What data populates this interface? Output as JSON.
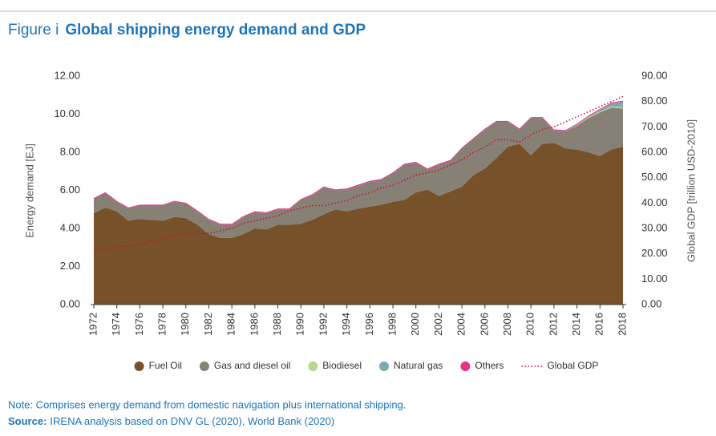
{
  "chart_data": {
    "type": "stacked-area",
    "figure_label": "Figure i",
    "title": "Global shipping energy demand and GDP",
    "y_label": "Energy demand [EJ]",
    "y2_label": "Global GDP [trillion USD-2010]",
    "x": [
      1972,
      1973,
      1974,
      1975,
      1976,
      1977,
      1978,
      1979,
      1980,
      1981,
      1982,
      1983,
      1984,
      1985,
      1986,
      1987,
      1988,
      1989,
      1990,
      1991,
      1992,
      1993,
      1994,
      1995,
      1996,
      1997,
      1998,
      1999,
      2000,
      2001,
      2002,
      2003,
      2004,
      2005,
      2006,
      2007,
      2008,
      2009,
      2010,
      2011,
      2012,
      2013,
      2014,
      2015,
      2016,
      2017,
      2018
    ],
    "xlim": [
      1972,
      2018
    ],
    "xticks": [
      1972,
      1974,
      1976,
      1978,
      1980,
      1982,
      1984,
      1986,
      1988,
      1990,
      1992,
      1994,
      1996,
      1998,
      2000,
      2002,
      2004,
      2006,
      2008,
      2010,
      2012,
      2014,
      2016,
      2018
    ],
    "ylim": [
      0,
      12
    ],
    "yticks": [
      {
        "value": 0,
        "label": "0.00"
      },
      {
        "value": 2,
        "label": "2.00"
      },
      {
        "value": 4,
        "label": "4.00"
      },
      {
        "value": 6,
        "label": "6.00"
      },
      {
        "value": 8,
        "label": "8.00"
      },
      {
        "value": 10,
        "label": "10.00"
      },
      {
        "value": 12,
        "label": "12.00"
      }
    ],
    "y2lim": [
      0,
      90
    ],
    "y2ticks": [
      {
        "value": 0,
        "label": "0.00"
      },
      {
        "value": 10,
        "label": "10.00"
      },
      {
        "value": 20,
        "label": "20.00"
      },
      {
        "value": 30,
        "label": "30.00"
      },
      {
        "value": 40,
        "label": "40.00"
      },
      {
        "value": 50,
        "label": "50.00"
      },
      {
        "value": 60,
        "label": "60.00"
      },
      {
        "value": 70,
        "label": "70.00"
      },
      {
        "value": 80,
        "label": "80.00"
      },
      {
        "value": 90,
        "label": "90.00"
      }
    ],
    "series": [
      {
        "name": "Fuel Oil",
        "color": "#77512a",
        "values": [
          4.8,
          5.1,
          4.9,
          4.4,
          4.5,
          4.45,
          4.4,
          4.6,
          4.55,
          4.2,
          3.7,
          3.5,
          3.5,
          3.7,
          4.0,
          3.95,
          4.2,
          4.2,
          4.25,
          4.45,
          4.75,
          5.0,
          4.9,
          5.05,
          5.15,
          5.25,
          5.4,
          5.5,
          5.9,
          6.05,
          5.7,
          5.95,
          6.2,
          6.8,
          7.15,
          7.7,
          8.3,
          8.45,
          7.85,
          8.45,
          8.5,
          8.2,
          8.15,
          8.0,
          7.8,
          8.15,
          8.3
        ]
      },
      {
        "name": "Gas and diesel oil",
        "color": "#878175",
        "values": [
          0.75,
          0.75,
          0.5,
          0.65,
          0.7,
          0.75,
          0.8,
          0.8,
          0.75,
          0.7,
          0.75,
          0.7,
          0.7,
          0.9,
          0.85,
          0.85,
          0.8,
          0.8,
          1.25,
          1.3,
          1.4,
          1.0,
          1.15,
          1.2,
          1.3,
          1.3,
          1.5,
          1.85,
          1.55,
          1.05,
          1.65,
          1.6,
          2.0,
          1.9,
          2.05,
          1.9,
          1.3,
          0.75,
          1.95,
          1.35,
          0.65,
          0.9,
          1.25,
          1.8,
          2.3,
          2.2,
          2.0
        ]
      },
      {
        "name": "Biodiesel",
        "color": "#b6d88f",
        "values": [
          0,
          0,
          0,
          0,
          0,
          0,
          0,
          0,
          0,
          0,
          0,
          0,
          0,
          0,
          0,
          0,
          0,
          0,
          0,
          0,
          0,
          0,
          0,
          0,
          0,
          0,
          0,
          0,
          0,
          0,
          0,
          0,
          0,
          0,
          0,
          0,
          0,
          0,
          0,
          0,
          0,
          0,
          0.02,
          0.04,
          0.05,
          0.06,
          0.06
        ]
      },
      {
        "name": "Natural gas",
        "color": "#7fa9af",
        "values": [
          0,
          0,
          0,
          0,
          0,
          0,
          0,
          0,
          0,
          0,
          0,
          0,
          0,
          0,
          0,
          0,
          0,
          0,
          0,
          0,
          0,
          0,
          0,
          0,
          0,
          0,
          0,
          0,
          0,
          0,
          0,
          0,
          0,
          0,
          0,
          0,
          0,
          0,
          0,
          0,
          0,
          0.02,
          0.03,
          0.04,
          0.08,
          0.15,
          0.3
        ]
      },
      {
        "name": "Others",
        "color": "#e5338b",
        "values": [
          0.05,
          0.05,
          0.05,
          0.05,
          0.05,
          0.05,
          0.05,
          0.05,
          0.05,
          0.05,
          0.05,
          0.05,
          0.05,
          0.05,
          0.05,
          0.05,
          0.05,
          0.05,
          0.05,
          0.05,
          0.05,
          0.05,
          0.05,
          0.05,
          0.05,
          0.05,
          0.05,
          0.05,
          0.05,
          0.05,
          0.05,
          0.05,
          0.05,
          0.05,
          0.05,
          0.05,
          0.05,
          0.05,
          0.05,
          0.05,
          0.05,
          0.05,
          0.05,
          0.05,
          0.05,
          0.05,
          0.05
        ]
      },
      {
        "name": "Global GDP",
        "color": "#c8102e",
        "type": "line",
        "axis": "y2",
        "values": [
          21,
          22,
          23,
          23,
          24,
          25,
          26,
          27,
          28,
          28,
          28,
          29,
          30,
          32,
          33,
          34,
          35,
          37,
          38,
          39,
          39,
          40,
          41,
          43,
          44,
          46,
          47,
          49,
          51,
          52,
          53,
          55,
          57,
          60,
          62,
          65,
          65,
          64,
          67,
          69,
          70,
          72,
          74,
          76,
          78,
          80,
          82
        ]
      }
    ],
    "note": "Note: Comprises energy demand from domestic navigation plus international shipping.",
    "source_label": "Source:",
    "source_text": "IRENA analysis based on DNV GL (2020), World Bank (2020)"
  }
}
